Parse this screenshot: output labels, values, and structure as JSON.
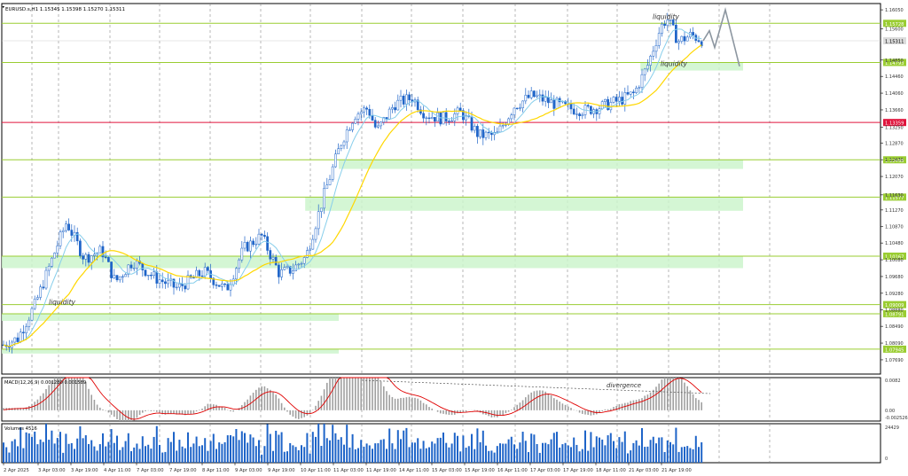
{
  "chart_data": [
    {
      "type": "candlestick",
      "header": "EURUSD.s,H1  1.15345 1.15398 1.15270 1.15311",
      "symbol": "EURUSD.s",
      "timeframe": "H1",
      "ohlc_last": {
        "open": 1.15345,
        "high": 1.15398,
        "low": 1.1527,
        "close": 1.15311
      },
      "ylim": [
        1.0735,
        1.162
      ],
      "price_ticks": [
        "1.16050",
        "1.15600",
        "1.14850",
        "1.14460",
        "1.14060",
        "1.13660",
        "1.13250",
        "1.12870",
        "1.12470",
        "1.12070",
        "1.11630",
        "1.11270",
        "1.10870",
        "1.10480",
        "1.10080",
        "1.09680",
        "1.09280",
        "1.08880",
        "1.08490",
        "1.08090",
        "1.07690"
      ],
      "x_ticks": [
        "2 Apr 2025",
        "3 Apr 03:00",
        "3 Apr 19:00",
        "4 Apr 11:00",
        "7 Apr 03:00",
        "7 Apr 19:00",
        "8 Apr 11:00",
        "9 Apr 03:00",
        "9 Apr 19:00",
        "10 Apr 11:00",
        "11 Apr 03:00",
        "11 Apr 19:00",
        "14 Apr 11:00",
        "15 Apr 03:00",
        "15 Apr 19:00",
        "16 Apr 11:00",
        "17 Apr 03:00",
        "17 Apr 19:00",
        "18 Apr 11:00",
        "21 Apr 03:00",
        "21 Apr 19:00"
      ],
      "levels": [
        {
          "price": 1.15728,
          "label": "1.15728",
          "color": "#9acd32"
        },
        {
          "price": 1.15311,
          "label": "1.15311",
          "color": "#d0d0d0",
          "current": true
        },
        {
          "price": 1.14793,
          "label": "1.14793",
          "color": "#9acd32"
        },
        {
          "price": 1.13359,
          "label": "1.13359",
          "color": "#e0143c"
        },
        {
          "price": 1.12468,
          "label": "1.12468",
          "color": "#9acd32"
        },
        {
          "price": 1.11577,
          "label": "1.11577",
          "color": "#9acd32"
        },
        {
          "price": 1.10167,
          "label": "1.10167",
          "color": "#9acd32"
        },
        {
          "price": 1.09009,
          "label": "1.09009",
          "color": "#9acd32"
        },
        {
          "price": 1.08791,
          "label": "1.08791",
          "color": "#9acd32"
        },
        {
          "price": 1.07945,
          "label": "1.07945",
          "color": "#9acd32"
        }
      ],
      "zones": [
        {
          "x_from": "21 Apr 03:00",
          "x_to": "right",
          "price_top": 1.14793,
          "price_bottom": 1.146,
          "color": "#ccf5cc"
        },
        {
          "x_from": "11 Apr 03:00",
          "x_to": "right",
          "price_top": 1.12468,
          "price_bottom": 1.1225,
          "color": "#ccf5cc"
        },
        {
          "x_from": "10 Apr 11:00",
          "x_to": "right",
          "price_top": 1.11577,
          "price_bottom": 1.1125,
          "color": "#ccf5cc"
        },
        {
          "x_from": "10 Apr 03:00",
          "x_to": "right",
          "price_top": 1.10167,
          "price_bottom": 1.0988,
          "color": "#ccf5cc"
        },
        {
          "x_from": "left",
          "x_to": "11 Apr 03:00",
          "price_top": 1.08791,
          "price_bottom": 1.0862,
          "color": "#ccf5cc"
        },
        {
          "x_from": "left",
          "x_to": "11 Apr 03:00",
          "price_top": 1.07945,
          "price_bottom": 1.0784,
          "color": "#ccf5cc"
        }
      ],
      "annotations": [
        {
          "text": "liquidity",
          "at": "21 Apr 03:00",
          "price": 1.1583
        },
        {
          "text": "liquidity",
          "at": "21 Apr 03:00",
          "price": 1.1471
        },
        {
          "text": "liquidity",
          "at": "3 Apr 03:00",
          "price": 1.0901
        }
      ],
      "colors": {
        "bull": "#1e64c8",
        "bear": "#1e64c8",
        "ma_fast": "#87ceeb",
        "ma_slow": "#ffd700",
        "projection": "#8c96a0"
      }
    },
    {
      "type": "histogram+line",
      "title": "MACD(12,26,9) 0.001280 0.001589",
      "y_ticks": [
        "0.0082",
        "0.00",
        "-0.002526"
      ],
      "ylim": [
        -0.0028,
        0.0085
      ],
      "annotation": "divergence",
      "colors": {
        "histogram": "#a0a0a0",
        "signal": "#e00000",
        "divergence_line": "#555555"
      }
    },
    {
      "type": "bar",
      "title": "Volumes 4516",
      "y_ticks": [
        "24429",
        "0"
      ],
      "ylim": [
        0,
        24429
      ],
      "colors": {
        "bars": "#1e64c8"
      }
    }
  ]
}
